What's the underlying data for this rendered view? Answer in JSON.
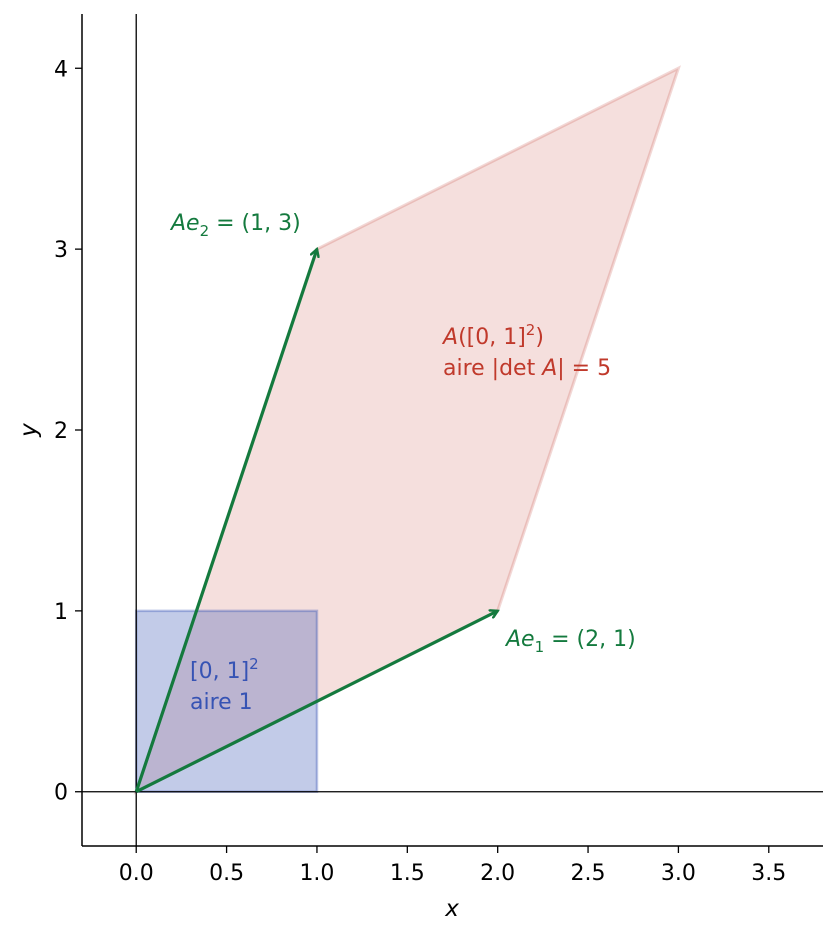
{
  "chart_data": {
    "type": "scatter",
    "xlabel": "x",
    "ylabel": "y",
    "xlim": [
      -0.3,
      3.8
    ],
    "ylim": [
      -0.3,
      4.3
    ],
    "xticks": [
      "0.0",
      "0.5",
      "1.0",
      "1.5",
      "2.0",
      "2.5",
      "3.0",
      "3.5"
    ],
    "xtick_values": [
      0,
      0.5,
      1,
      1.5,
      2,
      2.5,
      3,
      3.5
    ],
    "yticks": [
      "0",
      "1",
      "2",
      "3",
      "4"
    ],
    "ytick_values": [
      0,
      1,
      2,
      3,
      4
    ],
    "grid": false,
    "colors": {
      "unit": "#3653b4",
      "image": "#c0392b",
      "vector": "#147a3e"
    },
    "unit_square": [
      [
        0,
        0
      ],
      [
        1,
        0
      ],
      [
        1,
        1
      ],
      [
        0,
        1
      ]
    ],
    "image_parallelogram": [
      [
        0,
        0
      ],
      [
        2,
        1
      ],
      [
        3,
        4
      ],
      [
        1,
        3
      ]
    ],
    "vectors": [
      {
        "from": [
          0,
          0
        ],
        "to": [
          2,
          1
        ],
        "label_pre": "Ae",
        "label_sub": "1",
        "label_post": " = (2, 1)"
      },
      {
        "from": [
          0,
          0
        ],
        "to": [
          1,
          3
        ],
        "label_pre": "Ae",
        "label_sub": "2",
        "label_post": " = (1, 3)"
      }
    ],
    "annotations": {
      "unit_line1": "[0, 1]",
      "unit_sup": "2",
      "unit_line2": "aire 1",
      "image_line1_a": "A",
      "image_line1_b": "([0, 1]",
      "image_line1_sup": "2",
      "image_line1_c": ")",
      "image_line2_a": "aire |det ",
      "image_line2_b": "A",
      "image_line2_c": "| = 5"
    }
  }
}
